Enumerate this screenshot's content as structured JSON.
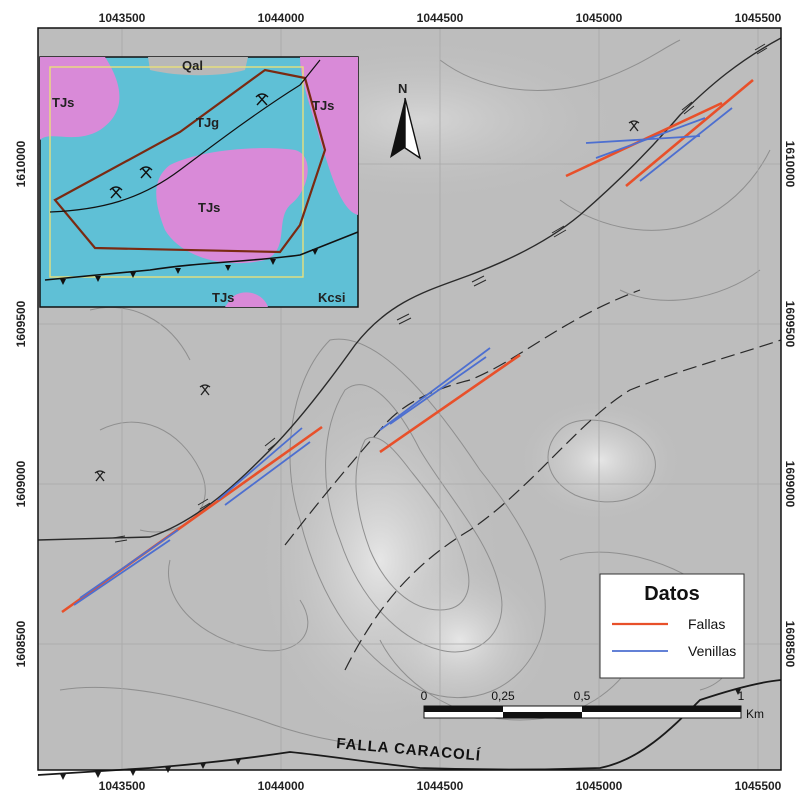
{
  "map": {
    "x_ticks": [
      "1043500",
      "1044000",
      "1044500",
      "1045000",
      "1045500"
    ],
    "y_ticks": [
      "1610000",
      "1609500",
      "1609000",
      "1608500"
    ],
    "north_label": "N",
    "fault_name": "FALLA CARACOLÍ"
  },
  "inset": {
    "labels": [
      "Qal",
      "TJs",
      "TJg",
      "TJs",
      "TJs",
      "TJs",
      "Kcsi"
    ],
    "colors": {
      "basement": "#5fc0d6",
      "intrusive": "#d98ad8",
      "alluvium": "#b8b8b8",
      "outline": "#7a2a12",
      "frame": "#e8e07a"
    }
  },
  "legend": {
    "title": "Datos",
    "items": [
      {
        "label": "Fallas",
        "color": "#e8502a"
      },
      {
        "label": "Venillas",
        "color": "#4d6fd0"
      }
    ]
  },
  "scale_bar": {
    "labels": [
      "0",
      "0,25",
      "0,5",
      "1"
    ],
    "unit": "Km"
  },
  "colors": {
    "terrain": "#bfbfbf",
    "contour": "#8f8f8f",
    "fault": "#2a2a2a"
  }
}
